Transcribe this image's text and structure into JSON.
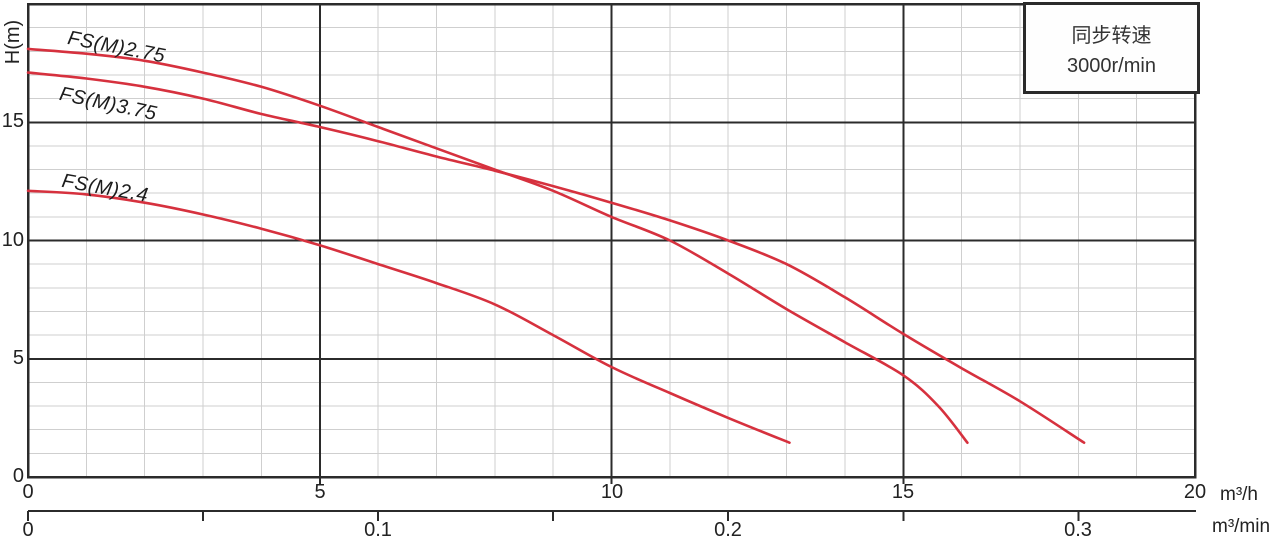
{
  "colors": {
    "curve": "#d6313e",
    "major_grid": "#2b2b2b",
    "minor_grid": "#cfcfcf",
    "text": "#222222",
    "background": "#ffffff"
  },
  "y_axis": {
    "title": "H(m)",
    "tick_labels": [
      "0",
      "5",
      "10",
      "15"
    ],
    "tick_values": [
      0,
      5,
      10,
      15
    ],
    "max": 20
  },
  "x_axis": {
    "unit": "m³/h",
    "tick_labels": [
      "0",
      "5",
      "10",
      "15",
      "20"
    ],
    "tick_values": [
      0,
      5,
      10,
      15,
      20
    ],
    "max": 20
  },
  "x_axis2": {
    "unit": "m³/min",
    "tick_labels": [
      "0",
      "0.1",
      "0.2",
      "0.3"
    ],
    "tick_values": [
      0,
      0.1,
      0.2,
      0.3
    ],
    "minor_tick_values": [
      0.05,
      0.15,
      0.25
    ],
    "units_per_main_axis": 60
  },
  "legend_box": {
    "line1": "同步转速",
    "line2": "3000r/min"
  },
  "chart_data": {
    "type": "line",
    "title": "",
    "xlabel": "m³/h",
    "x2label": "m³/min",
    "ylabel": "H(m)",
    "xlim": [
      0,
      20
    ],
    "ylim": [
      0,
      20
    ],
    "grid": "major-dark-every-5, minor-light-every-1",
    "legend_position": "top-right-box",
    "annotation": "同步转速 3000r/min",
    "series": [
      {
        "name": "FS(M)2.75",
        "points": [
          [
            0,
            18.1
          ],
          [
            1,
            17.9
          ],
          [
            2,
            17.6
          ],
          [
            3,
            17.1
          ],
          [
            4,
            16.5
          ],
          [
            5,
            15.7
          ],
          [
            6,
            14.8
          ],
          [
            7,
            13.9
          ],
          [
            8,
            13.0
          ],
          [
            9,
            12.1
          ],
          [
            10,
            11.0
          ],
          [
            11,
            10.0
          ],
          [
            12,
            8.6
          ],
          [
            13,
            7.1
          ],
          [
            14,
            5.7
          ],
          [
            15,
            4.3
          ],
          [
            15.6,
            3.0
          ],
          [
            16.1,
            1.45
          ]
        ]
      },
      {
        "name": "FS(M)3.75",
        "points": [
          [
            0,
            17.1
          ],
          [
            1,
            16.85
          ],
          [
            2,
            16.5
          ],
          [
            3,
            16.0
          ],
          [
            4,
            15.35
          ],
          [
            5,
            14.8
          ],
          [
            6,
            14.2
          ],
          [
            7,
            13.55
          ],
          [
            8,
            12.95
          ],
          [
            9,
            12.3
          ],
          [
            10,
            11.6
          ],
          [
            11,
            10.85
          ],
          [
            12,
            10.0
          ],
          [
            13,
            9.0
          ],
          [
            14,
            7.6
          ],
          [
            15,
            6.05
          ],
          [
            16,
            4.6
          ],
          [
            17,
            3.2
          ],
          [
            18.1,
            1.45
          ]
        ]
      },
      {
        "name": "FS(M)2.4",
        "points": [
          [
            0,
            12.1
          ],
          [
            1,
            11.95
          ],
          [
            2,
            11.6
          ],
          [
            3,
            11.1
          ],
          [
            4,
            10.5
          ],
          [
            5,
            9.8
          ],
          [
            6,
            9.0
          ],
          [
            7,
            8.2
          ],
          [
            8,
            7.3
          ],
          [
            9,
            6.0
          ],
          [
            10,
            4.65
          ],
          [
            11,
            3.55
          ],
          [
            12,
            2.5
          ],
          [
            13.05,
            1.45
          ]
        ]
      }
    ]
  }
}
